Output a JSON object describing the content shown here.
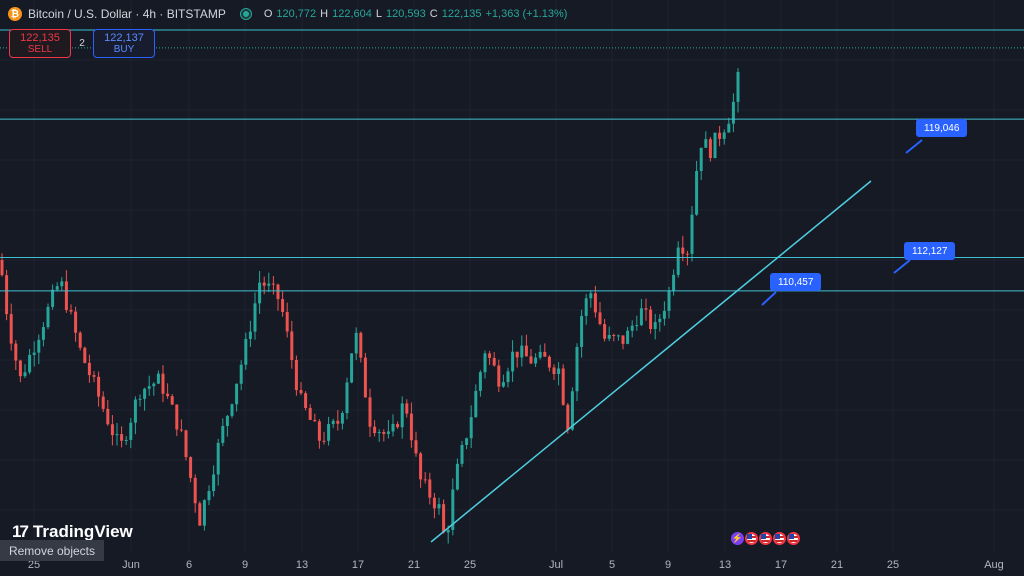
{
  "header": {
    "coin_icon": "bitcoin-icon",
    "title": "Bitcoin / U.S. Dollar · 4h · BITSTAMP",
    "ohlc": {
      "o_label": "O",
      "o": "120,772",
      "h_label": "H",
      "h": "122,604",
      "l_label": "L",
      "l": "120,593",
      "c_label": "C",
      "c": "122,135",
      "change": "+1,363 (+1.13%)"
    }
  },
  "trade": {
    "sell_price": "122,135",
    "sell_label": "SELL",
    "spread": "2",
    "buy_price": "122,137",
    "buy_label": "BUY"
  },
  "drawings": {
    "callouts": [
      "119,046",
      "112,127",
      "110,457"
    ]
  },
  "xaxis": {
    "labels": [
      "25",
      "Jun",
      "6",
      "9",
      "13",
      "17",
      "21",
      "25",
      "Jul",
      "5",
      "9",
      "13",
      "17",
      "21",
      "25",
      "Aug"
    ]
  },
  "branding": {
    "logo_text": "TradingView"
  },
  "remove_objects_label": "Remove objects",
  "events_icons": [
    "lightning-icon",
    "us-flag-icon",
    "us-flag-icon",
    "us-flag-icon",
    "us-flag-icon"
  ],
  "colors": {
    "background": "#161a25",
    "up": "#26a69a",
    "down": "#ef5350",
    "horizontal_lines": "#3fc0cf",
    "trendline": "#4ecfe0",
    "callout": "#2962ff"
  },
  "chart_data": {
    "type": "candlestick",
    "symbol": "BTCUSD",
    "timeframe": "4h",
    "exchange": "BITSTAMP",
    "price_range": [
      97000,
      125000
    ],
    "horizontal_levels": [
      123500,
      122604,
      119046,
      112127,
      110457
    ],
    "trendline": [
      [
        0.0,
        97500
      ],
      [
        1.0,
        116500
      ]
    ],
    "price_path": [
      [
        0,
        112000
      ],
      [
        8,
        109000
      ],
      [
        20,
        106000
      ],
      [
        40,
        108500
      ],
      [
        60,
        111000
      ],
      [
        80,
        107500
      ],
      [
        100,
        105000
      ],
      [
        120,
        102500
      ],
      [
        140,
        105500
      ],
      [
        160,
        106000
      ],
      [
        180,
        103500
      ],
      [
        200,
        99000
      ],
      [
        220,
        103000
      ],
      [
        245,
        107500
      ],
      [
        260,
        111000
      ],
      [
        280,
        110000
      ],
      [
        300,
        105000
      ],
      [
        320,
        103000
      ],
      [
        340,
        104000
      ],
      [
        355,
        108500
      ],
      [
        370,
        104000
      ],
      [
        390,
        103000
      ],
      [
        405,
        105000
      ],
      [
        420,
        101000
      ],
      [
        440,
        99500
      ],
      [
        445,
        97800
      ],
      [
        455,
        101000
      ],
      [
        470,
        104000
      ],
      [
        485,
        107500
      ],
      [
        500,
        106000
      ],
      [
        515,
        107500
      ],
      [
        530,
        107000
      ],
      [
        545,
        107000
      ],
      [
        560,
        106500
      ],
      [
        567,
        103500
      ],
      [
        580,
        109000
      ],
      [
        590,
        110500
      ],
      [
        605,
        108000
      ],
      [
        625,
        108000
      ],
      [
        640,
        109500
      ],
      [
        655,
        108500
      ],
      [
        670,
        110500
      ],
      [
        678,
        113000
      ],
      [
        688,
        112500
      ],
      [
        693,
        115000
      ],
      [
        700,
        118000
      ],
      [
        710,
        117500
      ],
      [
        722,
        118500
      ],
      [
        732,
        119500
      ],
      [
        738,
        121000
      ],
      [
        742,
        122600
      ]
    ]
  }
}
